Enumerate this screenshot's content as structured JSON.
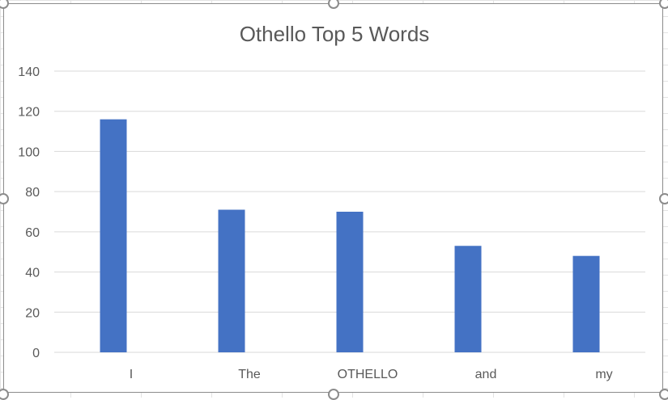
{
  "chart_data": {
    "type": "bar",
    "title": "Othello Top 5 Words",
    "xlabel": "",
    "ylabel": "",
    "categories": [
      "I",
      "The",
      "OTHELLO",
      "and",
      "my"
    ],
    "values": [
      116,
      71,
      70,
      53,
      48
    ],
    "ylim": [
      0,
      140
    ],
    "yticks": [
      0,
      20,
      40,
      60,
      80,
      100,
      120,
      140
    ],
    "grid": true,
    "legend": "none",
    "bar_color": "#4472C4"
  },
  "colors": {
    "gridline": "#d9d9d9",
    "text": "#595959",
    "border": "#8c8c8c"
  }
}
